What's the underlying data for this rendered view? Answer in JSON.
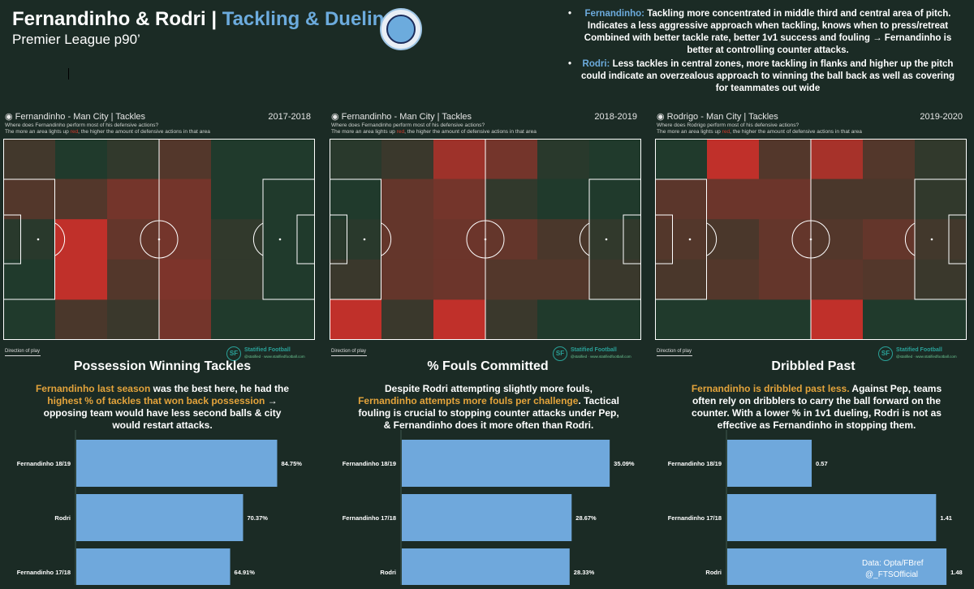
{
  "header": {
    "title_main": "Fernandinho & Rodri | ",
    "title_accent": "Tackling & Dueling",
    "subtitle": "Premier League p90’",
    "crest": "man-city-crest"
  },
  "notes": [
    {
      "name": "Fernandinho:",
      "text": " Tackling more concentrated in middle third and central area of pitch. Indicates a less aggressive approach when tackling, knows when to press/retreat Combined with better tackle rate, better 1v1 success and fouling → Fernandinho is better at controlling counter attacks."
    },
    {
      "name": "Rodri:",
      "text": " Less tackles in central zones, more tackling in flanks and higher up the pitch could indicate an overzealous approach to winning the ball back as well as covering for teammates out wide"
    }
  ],
  "heatmaps": [
    {
      "title": "Fernandinho - Man City | Tackles",
      "season": "2017-2018",
      "sub1": "Where does Fernandinho perform most of his defensive actions?",
      "sub2a": "The more an area lights up ",
      "sub2red": "red",
      "sub2b": ", the higher the amount of defensive actions in that area",
      "direction": "Direction of play",
      "logo": "Statified Football",
      "logo_sub": "@statified  ·  www.statifiedfootball.com"
    },
    {
      "title": "Fernandinho - Man City | Tackles",
      "season": "2018-2019",
      "sub1": "Where does Fernandinho perform most of his defensive actions?",
      "sub2a": "The more an area lights up ",
      "sub2red": "red",
      "sub2b": ", the higher the amount of defensive actions in that area",
      "direction": "Direction of play",
      "logo": "Statified Football",
      "logo_sub": "@statified  ·  www.statifiedfootball.com"
    },
    {
      "title": "Rodrigo - Man City | Tackles",
      "season": "2019-2020",
      "sub1": "Where does Rodrigo perform most of his defensive actions?",
      "sub2a": "The more an area lights up ",
      "sub2red": "red",
      "sub2b": ", the higher the amount of defensive actions in that area",
      "direction": "Direction of play",
      "logo": "Statified Football",
      "logo_sub": "@statified  ·  www.statifiedfootball.com"
    }
  ],
  "sections": [
    {
      "title": "Possession Winning Tackles",
      "body": [
        {
          "t": "Fernandinho last season",
          "gold": true
        },
        {
          "t": " was the best here, he had the ",
          "gold": false
        },
        {
          "t": "highest % of tackles that won back possession",
          "gold": true
        },
        {
          "t": " → opposing team would have less second balls & city would restart attacks.",
          "gold": false
        }
      ]
    },
    {
      "title": "% Fouls Committed",
      "body": [
        {
          "t": "Despite Rodri attempting slightly more fouls, ",
          "gold": false
        },
        {
          "t": "Fernandinho attempts more fouls per challenge",
          "gold": true
        },
        {
          "t": ". Tactical fouling is crucial to stopping counter attacks under Pep, & Fernandinho does it more often than Rodri.",
          "gold": false
        }
      ]
    },
    {
      "title": "Dribbled Past",
      "body": [
        {
          "t": "Fernandinho is dribbled past less.",
          "gold": true
        },
        {
          "t": " Against Pep, teams often rely on dribblers to carry the ball forward on the counter. With a lower % in 1v1 dueling, Rodri is not as effective as Fernandinho in stopping them.",
          "gold": false
        }
      ]
    }
  ],
  "chart_data": [
    {
      "type": "heatmap",
      "title": "Fernandinho - Man City | Tackles",
      "subtitle": "2017-2018",
      "rows": 5,
      "cols": 6,
      "intensity": [
        [
          0.25,
          0.05,
          0.15,
          0.35,
          0.05,
          0.05
        ],
        [
          0.35,
          0.35,
          0.55,
          0.55,
          0.05,
          0.05
        ],
        [
          0.1,
          1.0,
          0.45,
          0.55,
          0.15,
          0.05
        ],
        [
          0.05,
          1.0,
          0.35,
          0.6,
          0.15,
          0.05
        ],
        [
          0.05,
          0.3,
          0.2,
          0.55,
          0.05,
          0.05
        ]
      ]
    },
    {
      "type": "heatmap",
      "title": "Fernandinho - Man City | Tackles",
      "subtitle": "2018-2019",
      "rows": 5,
      "cols": 6,
      "intensity": [
        [
          0.1,
          0.2,
          0.8,
          0.55,
          0.1,
          0.05
        ],
        [
          0.05,
          0.45,
          0.55,
          0.15,
          0.05,
          0.05
        ],
        [
          0.1,
          0.45,
          0.5,
          0.45,
          0.3,
          0.15
        ],
        [
          0.2,
          0.45,
          0.5,
          0.35,
          0.35,
          0.2
        ],
        [
          1.0,
          0.2,
          1.0,
          0.2,
          0.05,
          0.05
        ]
      ]
    },
    {
      "type": "heatmap",
      "title": "Rodrigo - Man City | Tackles",
      "subtitle": "2019-2020",
      "rows": 5,
      "cols": 6,
      "intensity": [
        [
          0.05,
          1.0,
          0.35,
          0.85,
          0.35,
          0.15
        ],
        [
          0.4,
          0.5,
          0.5,
          0.3,
          0.3,
          0.15
        ],
        [
          0.35,
          0.3,
          0.45,
          0.35,
          0.45,
          0.25
        ],
        [
          0.3,
          0.35,
          0.45,
          0.4,
          0.35,
          0.2
        ],
        [
          0.05,
          0.05,
          0.05,
          1.0,
          0.05,
          0.05
        ]
      ]
    },
    {
      "type": "bar",
      "orientation": "horizontal",
      "title": "Possession Winning Tackles",
      "categories": [
        "Fernandinho 18/19",
        "Rodri",
        "Fernandinho 17/18"
      ],
      "values": [
        84.75,
        70.37,
        64.91
      ],
      "labels": [
        "84.75%",
        "70.37%",
        "64.91%"
      ],
      "xlim": [
        0,
        100
      ]
    },
    {
      "type": "bar",
      "orientation": "horizontal",
      "title": "% Fouls Committed",
      "categories": [
        "Fernandinho 18/19",
        "Fernandinho 17/18",
        "Rodri"
      ],
      "values": [
        35.09,
        28.67,
        28.33
      ],
      "labels": [
        "35.09%",
        "28.67%",
        "28.33%"
      ],
      "xlim": [
        0,
        40
      ]
    },
    {
      "type": "bar",
      "orientation": "horizontal",
      "title": "Dribbled Past",
      "categories": [
        "Fernandinho 18/19",
        "Fernandinho 17/18",
        "Rodri"
      ],
      "values": [
        0.57,
        1.41,
        1.48
      ],
      "labels": [
        "0.57",
        "1.41",
        "1.48"
      ],
      "xlim": [
        0,
        1.6
      ]
    }
  ],
  "colors": {
    "background": "#1b2b25",
    "bar": "#6fa8dc",
    "accent_blue": "#6cabdd",
    "gold": "#e3a33b",
    "heat_low": "#183a2c",
    "heat_high": "#c0302a"
  },
  "footer": {
    "source": "Data: Opta/FBref",
    "handle": "@_FTSOfficial"
  }
}
